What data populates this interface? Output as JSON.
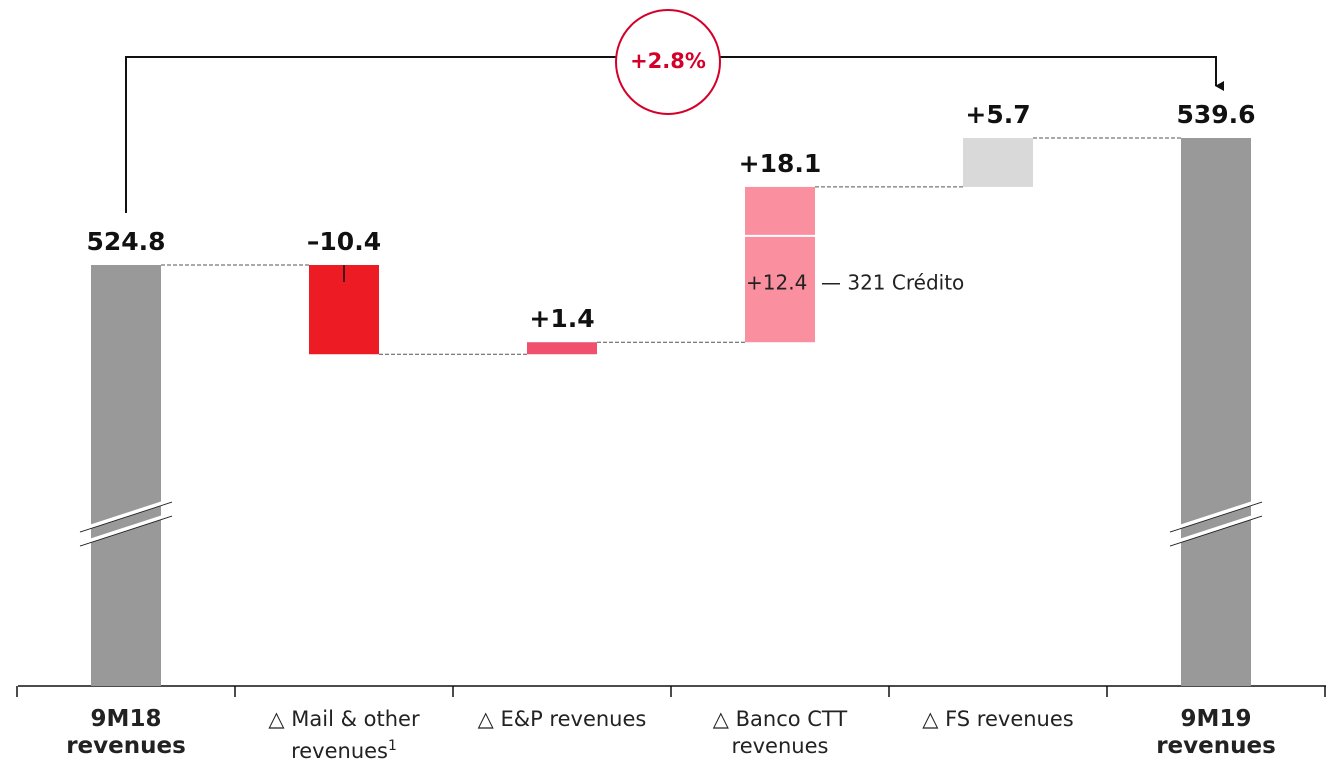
{
  "chart_data": {
    "type": "waterfall",
    "categories": [
      "9M18 revenues",
      "△ Mail & other revenues",
      "△ E&P revenues",
      "△ Banco CTT revenues",
      "△ FS revenues",
      "9M19 revenues"
    ],
    "category_notes": [
      null,
      "1",
      null,
      null,
      null,
      null
    ],
    "bar_types": [
      "total",
      "delta",
      "delta",
      "delta",
      "delta",
      "total"
    ],
    "values": [
      524.8,
      -10.4,
      1.4,
      18.1,
      5.7,
      539.6
    ],
    "value_labels": [
      "524.8",
      "–10.4",
      "+1.4",
      "+18.1",
      "+5.7",
      "539.6"
    ],
    "colors": [
      "#999999",
      "#ed1c24",
      "#f0506e",
      "#fa8fa0",
      "#d9d9d9",
      "#999999"
    ],
    "breakdown": {
      "value": 12.4,
      "label": "+12.4",
      "text": "— 321 Crédito"
    },
    "growth_annotation": "+2.8%",
    "broken_axis": true
  }
}
